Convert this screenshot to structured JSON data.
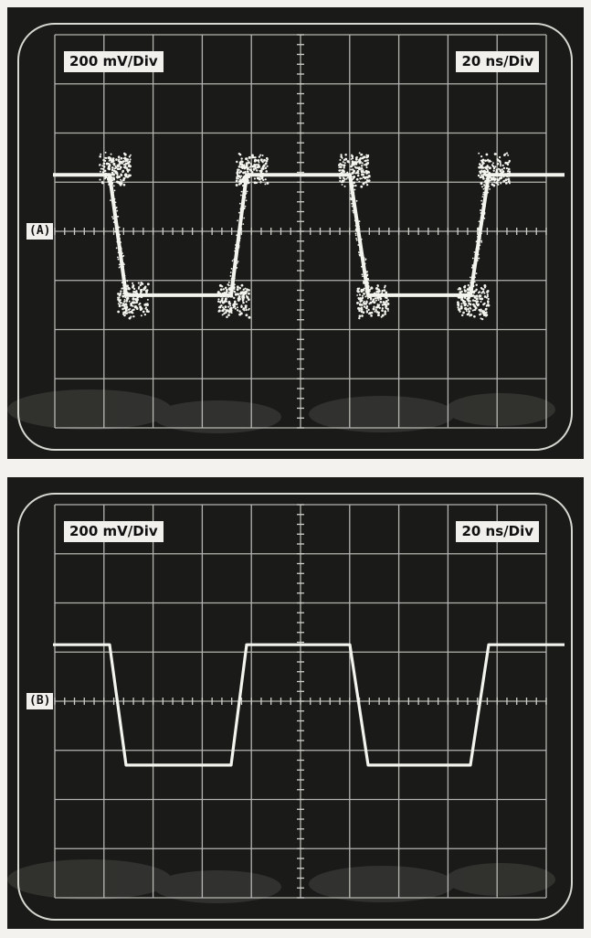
{
  "panels": [
    {
      "label": "(A)",
      "volts_per_div": "200 mV/Div",
      "time_per_div": "20 ns/Div",
      "trace_style": "noisy"
    },
    {
      "label": "(B)",
      "volts_per_div": "200 mV/Div",
      "time_per_div": "20 ns/Div",
      "trace_style": "clean"
    }
  ],
  "colors": {
    "screen": "#1a1a19",
    "graticule": "#cfcfca",
    "trace": "#f4f4ef",
    "label_bg": "#f1f0ec"
  }
}
